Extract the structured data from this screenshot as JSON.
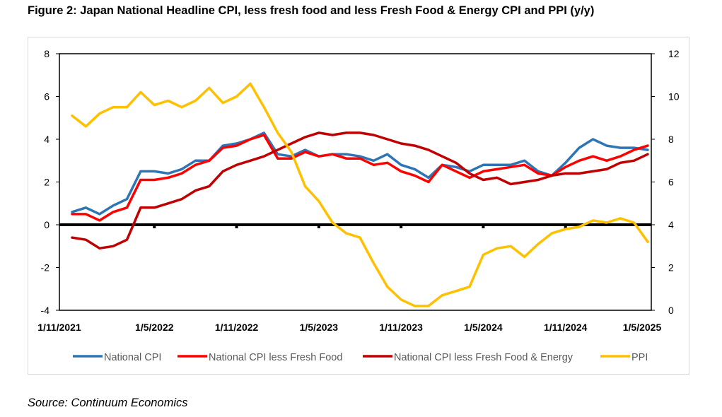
{
  "figure": {
    "title": "Figure 2: Japan National Headline CPI, less fresh food and less Fresh Food & Energy CPI and PPI (y/y)",
    "source": "Source: Continuum Economics"
  },
  "chart_data": {
    "type": "line",
    "title": "Figure 2: Japan National Headline CPI, less fresh food and less Fresh Food & Energy CPI and PPI (y/y)",
    "x_tick_labels": [
      "1/11/2021",
      "1/5/2022",
      "1/11/2022",
      "1/5/2023",
      "1/11/2023",
      "1/5/2024",
      "1/11/2024",
      "1/5/2025"
    ],
    "x": [
      "2021-11",
      "2021-12",
      "2022-01",
      "2022-02",
      "2022-03",
      "2022-04",
      "2022-05",
      "2022-06",
      "2022-07",
      "2022-08",
      "2022-09",
      "2022-10",
      "2022-11",
      "2022-12",
      "2023-01",
      "2023-02",
      "2023-03",
      "2023-04",
      "2023-05",
      "2023-06",
      "2023-07",
      "2023-08",
      "2023-09",
      "2023-10",
      "2023-11",
      "2023-12",
      "2024-01",
      "2024-02",
      "2024-03",
      "2024-04",
      "2024-05",
      "2024-06",
      "2024-07",
      "2024-08",
      "2024-09",
      "2024-10",
      "2024-11",
      "2024-12",
      "2025-01",
      "2025-02",
      "2025-03",
      "2025-04",
      "2025-05"
    ],
    "y_left": {
      "ylim": [
        -4,
        8
      ],
      "ticks": [
        -4,
        -2,
        0,
        2,
        4,
        6,
        8
      ]
    },
    "y_right": {
      "ylim": [
        0,
        12
      ],
      "ticks": [
        0,
        2,
        4,
        6,
        8,
        10,
        12
      ]
    },
    "legend_position": "bottom",
    "grid": false,
    "series": [
      {
        "name": "National CPI",
        "axis": "left",
        "color": "#2e75b6",
        "values": [
          0.6,
          0.8,
          0.5,
          0.9,
          1.2,
          2.5,
          2.5,
          2.4,
          2.6,
          3.0,
          3.0,
          3.7,
          3.8,
          4.0,
          4.3,
          3.3,
          3.2,
          3.5,
          3.2,
          3.3,
          3.3,
          3.2,
          3.0,
          3.3,
          2.8,
          2.6,
          2.2,
          2.8,
          2.7,
          2.5,
          2.8,
          2.8,
          2.8,
          3.0,
          2.5,
          2.3,
          2.9,
          3.6,
          4.0,
          3.7,
          3.6,
          3.6,
          3.5
        ]
      },
      {
        "name": "National CPI less Fresh Food",
        "axis": "left",
        "color": "#ff0000",
        "values": [
          0.5,
          0.5,
          0.2,
          0.6,
          0.8,
          2.1,
          2.1,
          2.2,
          2.4,
          2.8,
          3.0,
          3.6,
          3.7,
          4.0,
          4.2,
          3.1,
          3.1,
          3.4,
          3.2,
          3.3,
          3.1,
          3.1,
          2.8,
          2.9,
          2.5,
          2.3,
          2.0,
          2.8,
          2.5,
          2.2,
          2.5,
          2.6,
          2.7,
          2.8,
          2.4,
          2.3,
          2.7,
          3.0,
          3.2,
          3.0,
          3.2,
          3.5,
          3.7
        ]
      },
      {
        "name": "National CPI less Fresh Food & Energy",
        "axis": "left",
        "color": "#c00000",
        "values": [
          -0.6,
          -0.7,
          -1.1,
          -1.0,
          -0.7,
          0.8,
          0.8,
          1.0,
          1.2,
          1.6,
          1.8,
          2.5,
          2.8,
          3.0,
          3.2,
          3.5,
          3.8,
          4.1,
          4.3,
          4.2,
          4.3,
          4.3,
          4.2,
          4.0,
          3.8,
          3.7,
          3.5,
          3.2,
          2.9,
          2.4,
          2.1,
          2.2,
          1.9,
          2.0,
          2.1,
          2.3,
          2.4,
          2.4,
          2.5,
          2.6,
          2.9,
          3.0,
          3.3
        ]
      },
      {
        "name": "PPI",
        "axis": "right",
        "color": "#ffc000",
        "values": [
          9.1,
          8.6,
          9.2,
          9.5,
          9.5,
          10.2,
          9.6,
          9.8,
          9.5,
          9.8,
          10.4,
          9.7,
          10.0,
          10.6,
          9.5,
          8.3,
          7.4,
          5.8,
          5.1,
          4.1,
          3.6,
          3.4,
          2.2,
          1.1,
          0.5,
          0.2,
          0.2,
          0.7,
          0.9,
          1.1,
          2.6,
          2.9,
          3.0,
          2.5,
          3.1,
          3.6,
          3.8,
          3.9,
          4.2,
          4.1,
          4.3,
          4.1,
          3.2
        ]
      }
    ]
  }
}
